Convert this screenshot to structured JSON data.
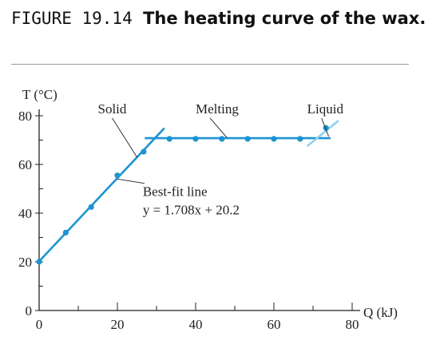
{
  "caption": {
    "figure_number": "FIGURE 19.14",
    "title": "The heating curve of the wax."
  },
  "chart_data": {
    "type": "scatter",
    "title": "",
    "xlabel": "Q (kJ)",
    "ylabel": "T (°C)",
    "xlim": [
      0,
      80
    ],
    "ylim": [
      0,
      80
    ],
    "x_ticks": [
      0,
      20,
      40,
      60,
      80
    ],
    "y_ticks": [
      0,
      20,
      40,
      60,
      80
    ],
    "x_minor_step": 10,
    "y_minor_step": 10,
    "grid": false,
    "colors": {
      "points": "#1d93d0",
      "line": "#1d93d0",
      "line_extension": "#8fd0ef",
      "axis": "#222222"
    },
    "points": [
      {
        "x": 0.0,
        "y": 20.0
      },
      {
        "x": 6.8,
        "y": 32.0
      },
      {
        "x": 13.3,
        "y": 42.5
      },
      {
        "x": 20.0,
        "y": 55.5
      },
      {
        "x": 26.7,
        "y": 65.2
      },
      {
        "x": 33.3,
        "y": 70.5
      },
      {
        "x": 40.0,
        "y": 70.5
      },
      {
        "x": 46.7,
        "y": 70.5
      },
      {
        "x": 53.3,
        "y": 70.5
      },
      {
        "x": 60.0,
        "y": 70.5
      },
      {
        "x": 66.7,
        "y": 70.5
      },
      {
        "x": 73.3,
        "y": 75.0
      }
    ],
    "lines": [
      {
        "name": "solid-fit",
        "x": [
          0.0,
          32.0
        ],
        "y": [
          20.2,
          74.9
        ],
        "style": "solid"
      },
      {
        "name": "melting-plateau",
        "x": [
          27.0,
          74.5
        ],
        "y": [
          70.8,
          70.8
        ],
        "style": "solid"
      },
      {
        "name": "liquid-extension",
        "x": [
          68.5,
          76.5
        ],
        "y": [
          67.5,
          78.0
        ],
        "style": "light"
      }
    ],
    "annotations": [
      {
        "name": "solid-label",
        "text": "Solid",
        "x": 15.0,
        "y": 81.0,
        "points_to": [
          25.0,
          63.0
        ]
      },
      {
        "name": "melting-label",
        "text": "Melting",
        "x": 40.0,
        "y": 81.0,
        "points_to": [
          48.0,
          71.0
        ]
      },
      {
        "name": "liquid-label",
        "text": "Liquid",
        "x": 68.5,
        "y": 81.0,
        "points_to": [
          74.0,
          71.5
        ]
      },
      {
        "name": "best-fit-label",
        "text": "Best-fit line",
        "equation": "y = 1.708x + 20.2",
        "x": 26.5,
        "y": 47.0,
        "points_to": [
          20.0,
          54.0
        ]
      }
    ]
  }
}
